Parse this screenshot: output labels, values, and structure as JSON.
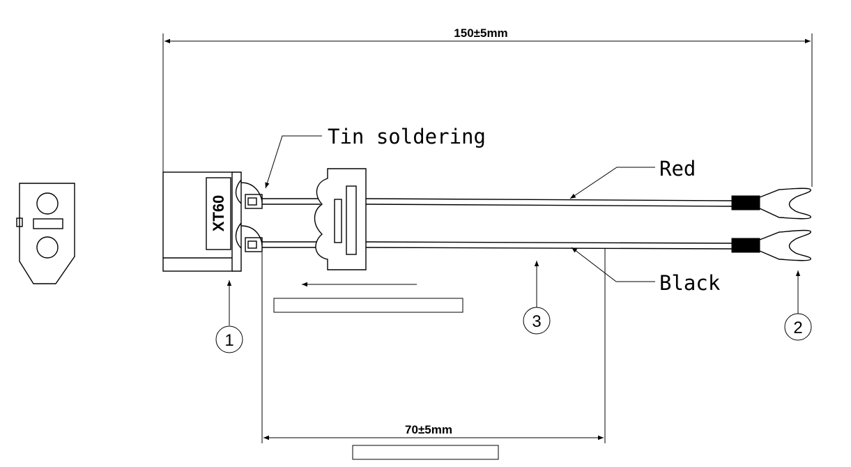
{
  "dimensions": {
    "overall_length": "150±5mm",
    "split_length": "70±5mm"
  },
  "labels": {
    "tin_soldering": "Tin soldering",
    "red_wire": "Red",
    "black_wire": "Black",
    "connector": "XT60"
  },
  "callouts": {
    "connector_part": "1",
    "terminal_part": "2",
    "wire_part": "3"
  },
  "colors": {
    "line": "#000000",
    "background": "#ffffff",
    "terminal_sleeve": "#000000"
  }
}
